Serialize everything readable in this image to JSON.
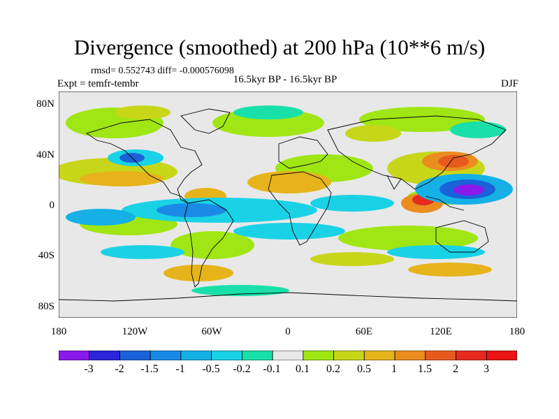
{
  "title": "Divergence (smoothed) at 200 hPa (10**6 m/s)",
  "stats": {
    "rmsd_text": "rmsd= 0.552743 diff= -0.000576098"
  },
  "experiment": "Expt = temfr-tembr",
  "comparison": "16.5kyr BP - 16.5kyr BP",
  "season": "DJF",
  "axes": {
    "y_ticks": [
      "80N",
      "40N",
      "0",
      "40S",
      "80S"
    ],
    "x_ticks": [
      "180",
      "120W",
      "60W",
      "0",
      "60E",
      "120E",
      "180"
    ]
  },
  "colorbar": {
    "labels": [
      "-3",
      "-2",
      "-1.5",
      "-1",
      "-0.5",
      "-0.2",
      "-0.1",
      "0.1",
      "0.2",
      "0.5",
      "1",
      "1.5",
      "2",
      "3"
    ],
    "colors": [
      "#8a1aeb",
      "#2b26d9",
      "#1a62d9",
      "#1a8ae6",
      "#14b0e6",
      "#1ad2e6",
      "#19e0a8",
      "#e8e8e8",
      "#a0e614",
      "#c8d61a",
      "#e6b41a",
      "#eb8c1e",
      "#e65a1e",
      "#e62a1e",
      "#eb1414"
    ]
  },
  "field_colors": {
    "neutral": "#e8e8e8",
    "light_pos": "#a0e614",
    "pos1": "#c8d61a",
    "pos2": "#e6b41a",
    "pos3": "#eb8c1e",
    "pos4": "#e65a1e",
    "pos5": "#e62a1e",
    "neg1": "#19e0a8",
    "neg2": "#1ad2e6",
    "neg3": "#14b0e6",
    "neg4": "#1a8ae6",
    "neg5": "#1a62d9",
    "neg6": "#2b26d9",
    "neg7": "#8a1aeb"
  }
}
